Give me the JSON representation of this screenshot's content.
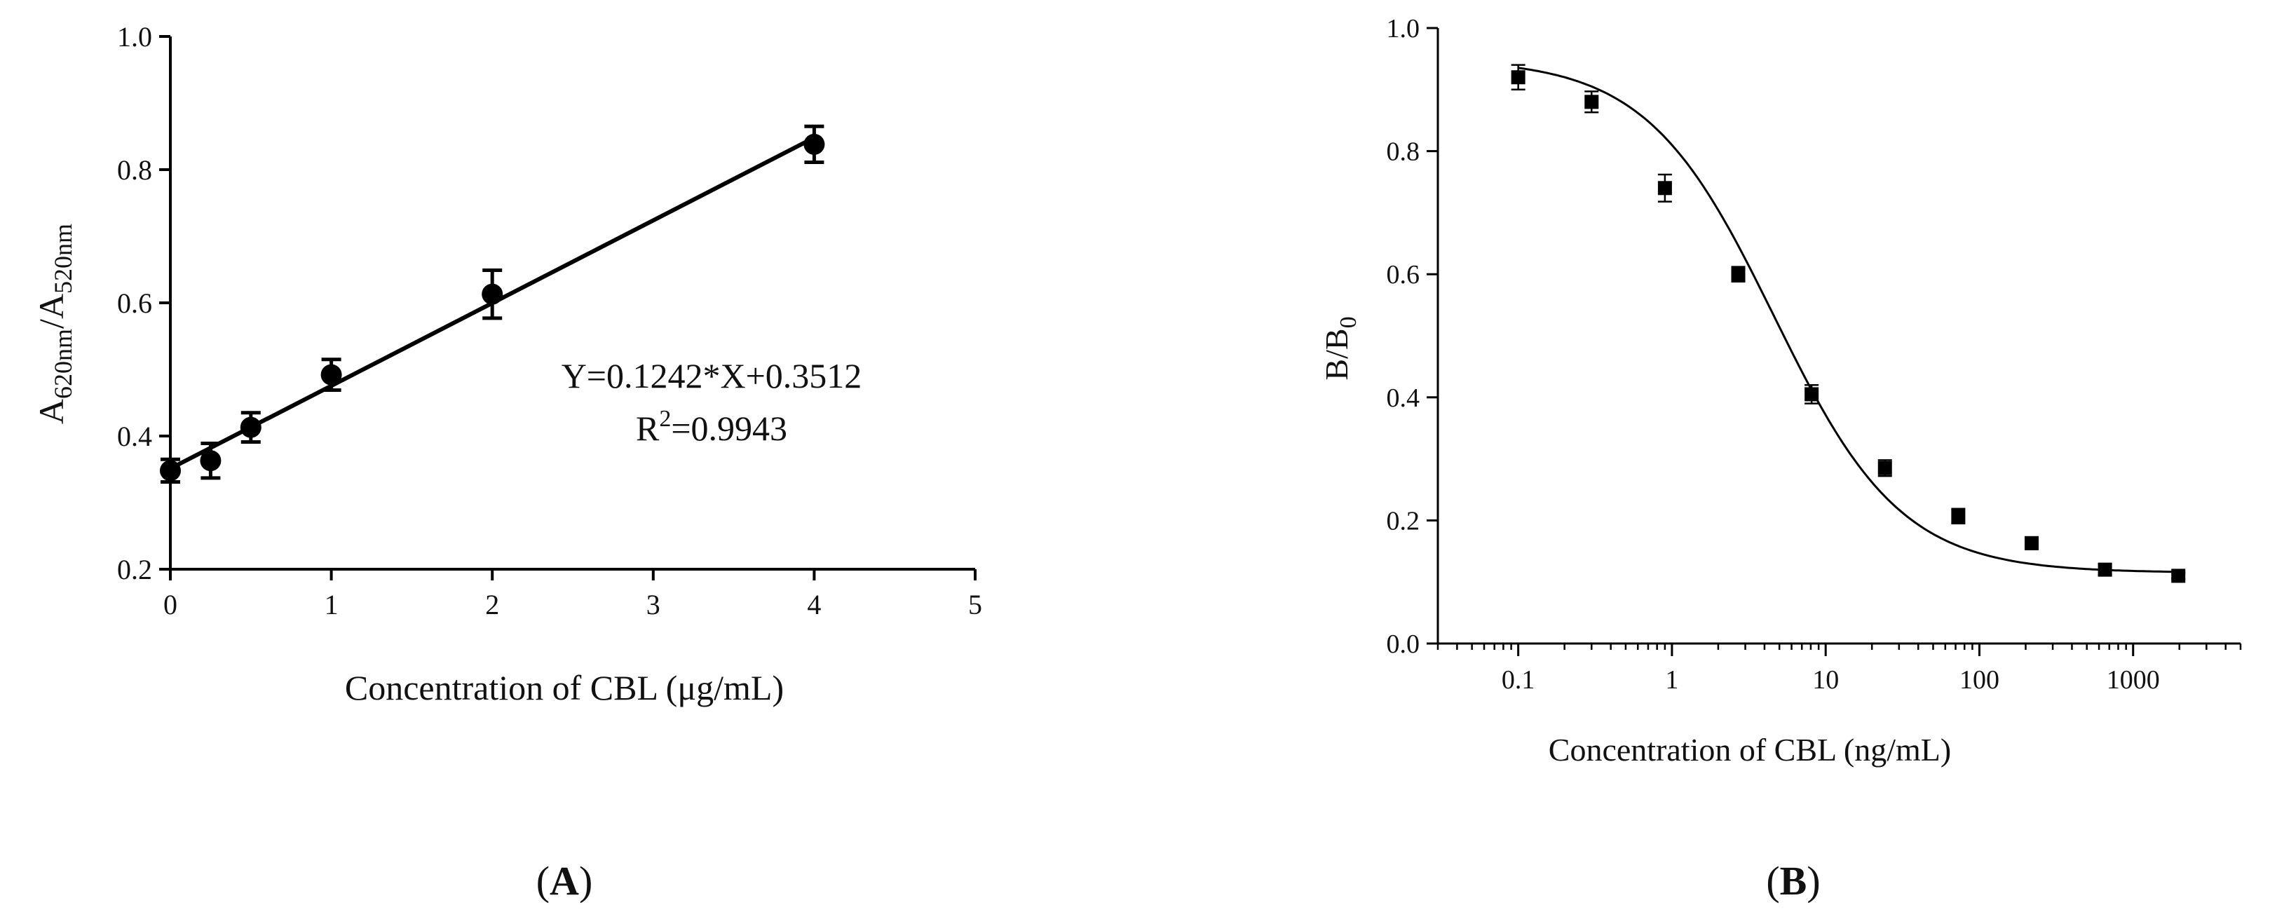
{
  "chart_data": [
    {
      "type": "scatter",
      "panel_label": "A",
      "xlabel": "Concentration of CBL (μg/mL)",
      "ylabel": {
        "parts": [
          {
            "t": "A",
            "sub": false
          },
          {
            "t": "620nm",
            "sub": true
          },
          {
            "t": "/A",
            "sub": false
          },
          {
            "t": "520nm",
            "sub": true
          }
        ]
      },
      "xlim": [
        0,
        5
      ],
      "ylim": [
        0.2,
        1.0
      ],
      "xticks": [
        0,
        1,
        2,
        3,
        4,
        5
      ],
      "xtick_labels": [
        "0",
        "1",
        "2",
        "3",
        "4",
        "5"
      ],
      "yticks": [
        0.2,
        0.4,
        0.6,
        0.8,
        1.0
      ],
      "ytick_labels": [
        "0.2",
        "0.4",
        "0.6",
        "0.8",
        "1.0"
      ],
      "grid": false,
      "series": [
        {
          "x": [
            0,
            0.25,
            0.5,
            1,
            2,
            4
          ],
          "y": [
            0.348,
            0.363,
            0.413,
            0.492,
            0.613,
            0.838
          ],
          "err": [
            0.017,
            0.026,
            0.022,
            0.023,
            0.036,
            0.027
          ],
          "marker": "circle",
          "color": "#000000"
        }
      ],
      "fit": {
        "type": "linear",
        "slope": 0.1242,
        "intercept": 0.3512,
        "x_range": [
          0,
          4
        ]
      },
      "annotations": {
        "equation": "Y=0.1242*X+0.3512",
        "r2": {
          "prefix": "R",
          "sup": "2",
          "suffix": "=0.9943"
        }
      }
    },
    {
      "type": "scatter",
      "panel_label": "B",
      "xlabel": "Concentration of CBL (ng/mL)",
      "ylabel": {
        "parts": [
          {
            "t": "B/B",
            "sub": false
          },
          {
            "t": "0",
            "sub": true
          }
        ]
      },
      "xscale": "log",
      "xlim": [
        0.03,
        5000
      ],
      "ylim": [
        0.0,
        1.0
      ],
      "xticks": [
        0.1,
        1,
        10,
        100,
        1000
      ],
      "xtick_labels": [
        "0.1",
        "1",
        "10",
        "100",
        "1000"
      ],
      "yticks": [
        0.0,
        0.2,
        0.4,
        0.6,
        0.8,
        1.0
      ],
      "ytick_labels": [
        "0.0",
        "0.2",
        "0.4",
        "0.6",
        "0.8",
        "1.0"
      ],
      "grid": false,
      "series": [
        {
          "x": [
            0.1,
            0.3,
            0.9,
            2.7,
            8.1,
            24.3,
            72.9,
            218.7,
            656.1,
            1968.3
          ],
          "y": [
            0.92,
            0.88,
            0.74,
            0.6,
            0.405,
            0.285,
            0.207,
            0.163,
            0.12,
            0.11
          ],
          "err": [
            0.02,
            0.017,
            0.022,
            0.012,
            0.015,
            0.013,
            0.012,
            0.01,
            0.009,
            0.005
          ],
          "marker": "square",
          "color": "#000000"
        }
      ],
      "fit": {
        "type": "four-parameter logistic",
        "top": 0.95,
        "bottom": 0.115,
        "ic50": 4.6,
        "hill": 1.05,
        "x_range": [
          0.1,
          1968.3
        ]
      }
    }
  ]
}
